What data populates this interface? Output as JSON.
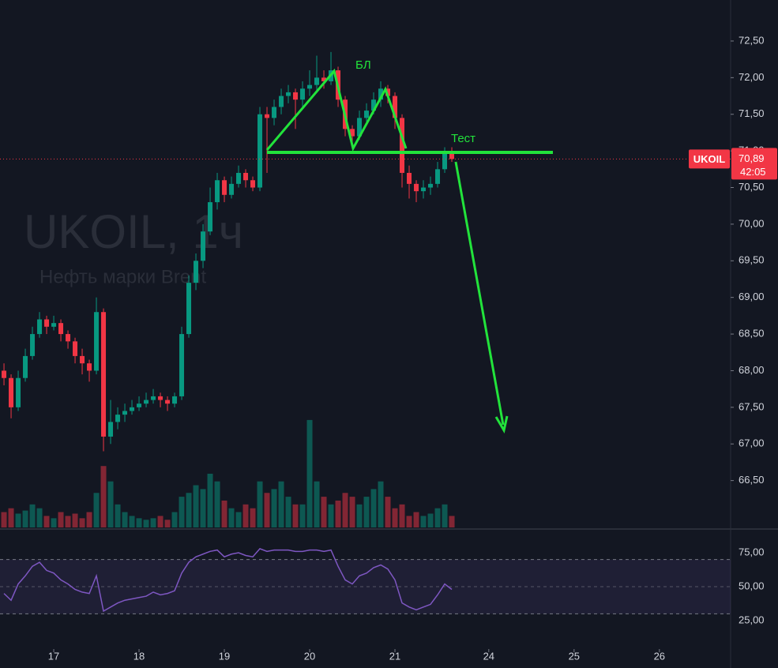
{
  "chart_data": {
    "type": "candlestick",
    "watermark_title": "UKOIL, 1ч",
    "watermark_subtitle": "Нефть марки Brent",
    "symbol_label": "UKOIL",
    "last_price": {
      "value": 70.89,
      "label": "70,89"
    },
    "timer": "42:05",
    "annotations": [
      "БЛ",
      "Тест"
    ],
    "up_color": "#089981",
    "down_color": "#f23645",
    "rsi_color": "#7e57c2",
    "x": [
      -7,
      -6,
      -5,
      -4,
      -3,
      -2,
      -1,
      0,
      1,
      2,
      3,
      4,
      5,
      6,
      7,
      8,
      9,
      10,
      11,
      12,
      13,
      14,
      15,
      16,
      17,
      18,
      19,
      20,
      21,
      22,
      23,
      24,
      25,
      26,
      27,
      28,
      29,
      30,
      31,
      32,
      33,
      34,
      35,
      36,
      37,
      38,
      39,
      40,
      41,
      42,
      43,
      44,
      45,
      46,
      47,
      48,
      49,
      50,
      51,
      52,
      53,
      54,
      55,
      56
    ],
    "open": [
      68.0,
      67.9,
      67.5,
      67.9,
      68.2,
      68.5,
      68.7,
      68.6,
      68.65,
      68.5,
      68.4,
      68.2,
      68.1,
      68.0,
      68.8,
      67.1,
      67.3,
      67.4,
      67.45,
      67.5,
      67.55,
      67.6,
      67.65,
      67.6,
      67.55,
      67.65,
      68.5,
      69.2,
      69.5,
      69.9,
      70.3,
      70.6,
      70.4,
      70.55,
      70.7,
      70.6,
      70.5,
      71.5,
      71.45,
      71.6,
      71.75,
      71.8,
      71.7,
      71.85,
      71.9,
      72.0,
      71.95,
      72.1,
      71.7,
      71.3,
      71.2,
      71.45,
      71.55,
      71.7,
      71.85,
      71.75,
      71.45,
      70.7,
      70.55,
      70.45,
      70.5,
      70.55,
      70.75,
      71.0
    ],
    "high": [
      68.1,
      67.95,
      68.0,
      68.3,
      68.6,
      68.8,
      68.75,
      68.75,
      68.7,
      68.55,
      68.45,
      68.3,
      68.15,
      69.0,
      68.85,
      67.6,
      67.5,
      67.55,
      67.6,
      67.65,
      67.7,
      67.75,
      67.7,
      67.65,
      67.7,
      68.6,
      69.3,
      69.6,
      70.0,
      70.5,
      70.7,
      70.65,
      70.65,
      70.8,
      70.75,
      70.65,
      71.6,
      71.6,
      71.7,
      71.85,
      71.9,
      71.85,
      71.95,
      72.1,
      72.3,
      72.1,
      72.35,
      72.15,
      71.75,
      71.35,
      71.55,
      71.65,
      71.8,
      71.95,
      71.9,
      71.8,
      71.5,
      70.8,
      70.6,
      70.6,
      70.65,
      70.85,
      71.05,
      71.05
    ],
    "low": [
      67.8,
      67.35,
      67.45,
      67.85,
      68.15,
      68.45,
      68.5,
      68.55,
      68.4,
      68.3,
      68.1,
      67.95,
      67.85,
      67.95,
      66.9,
      67.0,
      67.2,
      67.3,
      67.4,
      67.45,
      67.5,
      67.55,
      67.5,
      67.45,
      67.5,
      67.6,
      68.45,
      69.1,
      69.4,
      69.85,
      70.2,
      70.3,
      70.35,
      70.5,
      70.5,
      70.45,
      70.45,
      70.7,
      71.35,
      71.5,
      71.65,
      71.3,
      71.6,
      71.75,
      71.8,
      71.85,
      71.9,
      71.6,
      71.2,
      71.1,
      71.15,
      71.4,
      71.5,
      71.6,
      71.65,
      71.3,
      70.5,
      70.35,
      70.3,
      70.35,
      70.4,
      70.5,
      70.7,
      70.85
    ],
    "close": [
      67.9,
      67.5,
      67.9,
      68.2,
      68.5,
      68.7,
      68.6,
      68.65,
      68.5,
      68.4,
      68.2,
      68.1,
      68.0,
      68.8,
      67.1,
      67.3,
      67.4,
      67.45,
      67.5,
      67.55,
      67.6,
      67.65,
      67.6,
      67.55,
      67.65,
      68.5,
      69.2,
      69.5,
      69.9,
      70.3,
      70.6,
      70.4,
      70.55,
      70.7,
      70.6,
      70.5,
      71.5,
      71.45,
      71.6,
      71.75,
      71.8,
      71.7,
      71.85,
      71.9,
      72.0,
      71.95,
      72.1,
      71.7,
      71.3,
      71.2,
      71.45,
      71.55,
      71.7,
      71.85,
      71.75,
      71.45,
      70.7,
      70.55,
      70.45,
      70.5,
      70.55,
      70.75,
      71.0,
      70.89
    ],
    "volume": [
      20,
      25,
      18,
      22,
      30,
      25,
      15,
      12,
      20,
      15,
      18,
      12,
      20,
      45,
      80,
      60,
      30,
      20,
      15,
      12,
      10,
      12,
      15,
      10,
      20,
      40,
      45,
      55,
      50,
      70,
      60,
      35,
      25,
      20,
      30,
      25,
      60,
      45,
      50,
      60,
      40,
      30,
      30,
      140,
      60,
      40,
      30,
      35,
      45,
      40,
      30,
      40,
      50,
      60,
      40,
      25,
      30,
      15,
      20,
      15,
      18,
      25,
      30,
      15
    ],
    "vlim": [
      0,
      180
    ],
    "rsi": [
      45,
      40,
      52,
      58,
      65,
      68,
      62,
      60,
      55,
      52,
      48,
      46,
      45,
      58,
      32,
      35,
      38,
      40,
      41,
      42,
      43,
      46,
      44,
      45,
      47,
      60,
      68,
      72,
      74,
      76,
      77,
      72,
      74,
      75,
      73,
      72,
      78,
      76,
      77,
      77,
      77,
      76,
      76,
      77,
      77,
      76,
      77,
      65,
      55,
      52,
      58,
      60,
      64,
      66,
      63,
      55,
      38,
      35,
      33,
      35,
      37,
      44,
      52,
      48
    ],
    "rsi_band": [
      30,
      70
    ],
    "xlim": [
      -7.56,
      95.22
    ],
    "xticks": [
      {
        "value": 0,
        "label": "17"
      },
      {
        "value": 12,
        "label": "18"
      },
      {
        "value": 24,
        "label": "19"
      },
      {
        "value": 36,
        "label": "20"
      },
      {
        "value": 48,
        "label": "21"
      },
      {
        "value": 61.2,
        "label": "24"
      },
      {
        "value": 73.2,
        "label": "25"
      },
      {
        "value": 85.2,
        "label": "26"
      }
    ],
    "ylim": [
      65.86,
      73.06
    ],
    "yticks": [
      {
        "value": 66.5,
        "label": "66,50"
      },
      {
        "value": 67,
        "label": "67,00"
      },
      {
        "value": 67.5,
        "label": "67,50"
      },
      {
        "value": 68,
        "label": "68,00"
      },
      {
        "value": 68.5,
        "label": "68,50"
      },
      {
        "value": 69,
        "label": "69,00"
      },
      {
        "value": 69.5,
        "label": "69,50"
      },
      {
        "value": 70,
        "label": "70,00"
      },
      {
        "value": 70.5,
        "label": "70,50"
      },
      {
        "value": 71,
        "label": "71,00"
      },
      {
        "value": 71.5,
        "label": "71,50"
      },
      {
        "value": 72,
        "label": "72,00"
      },
      {
        "value": 72.5,
        "label": "72,50"
      }
    ],
    "rsi_ylim": [
      9.9,
      91.3
    ],
    "rsi_ticks": [
      {
        "value": 25,
        "label": "25,00"
      },
      {
        "value": 50,
        "label": "50,00"
      },
      {
        "value": 75,
        "label": "75,00"
      }
    ]
  }
}
